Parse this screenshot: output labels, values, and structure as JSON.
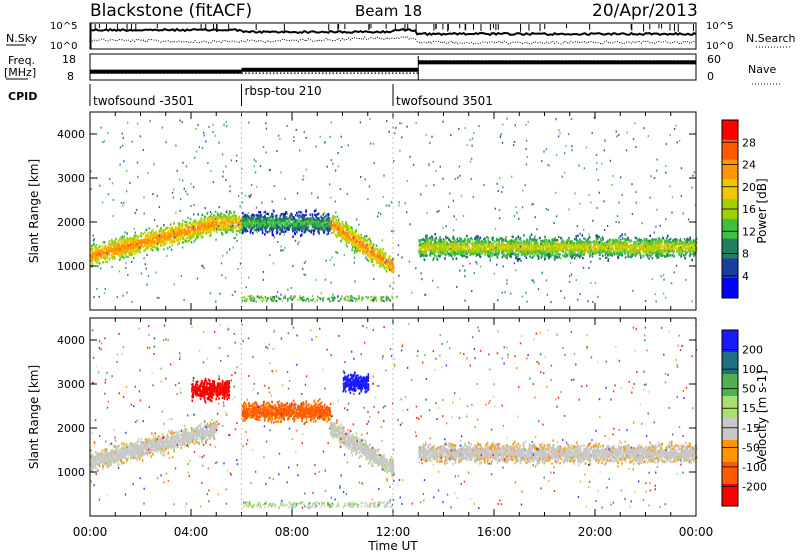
{
  "header": {
    "title": "Blackstone (fitACF)",
    "beam": "Beam 18",
    "date": "20/Apr/2013"
  },
  "nsky_panel": {
    "left_label": "N.Sky",
    "right_label": "N.Search",
    "left_ticks": [
      "10^5",
      "10^0"
    ],
    "right_ticks": [
      "10^5",
      "10^0"
    ]
  },
  "freq_panel": {
    "left_label_line1": "Freq.",
    "left_label_line2": "[MHz]",
    "right_label": "Nave",
    "left_ticks": [
      "18",
      "8"
    ],
    "right_ticks": [
      "60",
      "0"
    ],
    "segments": [
      {
        "start": 0,
        "end": 6,
        "freq": 10.5,
        "nave": 17
      },
      {
        "start": 6,
        "end": 13,
        "freq": 11.5,
        "nave": 17
      },
      {
        "start": 13,
        "end": 24,
        "freq": 15.5,
        "nave": 47
      }
    ]
  },
  "cpid": {
    "label": "CPID",
    "segments": [
      {
        "name": "twofsound -3501",
        "start": 0,
        "end": 6
      },
      {
        "name": "rbsp-tou 210",
        "start": 6,
        "end": 12
      },
      {
        "name": "twofsound 3501",
        "start": 12,
        "end": 24
      }
    ]
  },
  "power_panel": {
    "ylabel": "Slant Range [km]",
    "cbar_label": "Power [dB]",
    "cbar_ticks": [
      "28",
      "24",
      "20",
      "16",
      "12",
      "8",
      "4"
    ],
    "cbar_colors": [
      "#ff0000",
      "#ff5a00",
      "#ff9600",
      "#f0c800",
      "#a0d000",
      "#40c040",
      "#208060",
      "#1a3ea0",
      "#0000ff"
    ]
  },
  "velocity_panel": {
    "ylabel": "Slant Range [km]",
    "cbar_label": "Velocity [m s-1]",
    "cbar_ticks": [
      "200",
      "100",
      "50",
      "15",
      "-15",
      "-50",
      "-100",
      "-200"
    ],
    "cbar_colors": [
      "#1a1aff",
      "#207080",
      "#50b050",
      "#a8e070",
      "#c8c8c8",
      "#ff9600",
      "#ff5a00",
      "#ff0000"
    ]
  },
  "xaxis": {
    "label": "Time UT",
    "ticks": [
      "00:00",
      "04:00",
      "08:00",
      "12:00",
      "16:00",
      "20:00",
      "00:00"
    ]
  },
  "chart_data": {
    "type": "heatmap",
    "title": "Blackstone (fitACF)",
    "x_range_hours": [
      0,
      24
    ],
    "y_range_km": [
      0,
      4500
    ],
    "y_ticks_km": [
      1000,
      2000,
      3000,
      4000
    ],
    "power_bands": [
      {
        "t": [
          0,
          5
        ],
        "r_start": 1250,
        "r_end": 2000,
        "db": 24
      },
      {
        "t": [
          5,
          6
        ],
        "r_start": 2000,
        "r_end": 2000,
        "db": 22
      },
      {
        "t": [
          6,
          9.5
        ],
        "r_start": 2000,
        "r_end": 2000,
        "db": 12
      },
      {
        "t": [
          9.5,
          12
        ],
        "r_start": 2000,
        "r_end": 1000,
        "db": 24
      },
      {
        "t": [
          13,
          24
        ],
        "r_start": 1450,
        "r_end": 1450,
        "db": 18
      }
    ],
    "velocity_bands": [
      {
        "t": [
          0,
          5
        ],
        "r_start": 1250,
        "r_end": 2000,
        "v": 0
      },
      {
        "t": [
          4,
          5.5
        ],
        "r_start": 2900,
        "r_end": 2900,
        "v": -150
      },
      {
        "t": [
          6,
          9.5
        ],
        "r_start": 2400,
        "r_end": 2400,
        "v": -60
      },
      {
        "t": [
          9.5,
          12
        ],
        "r_start": 2000,
        "r_end": 1100,
        "v": 5
      },
      {
        "t": [
          10,
          11
        ],
        "r_start": 3050,
        "r_end": 3050,
        "v": 180
      },
      {
        "t": [
          13,
          24
        ],
        "r_start": 1450,
        "r_end": 1450,
        "v": -5
      }
    ]
  }
}
